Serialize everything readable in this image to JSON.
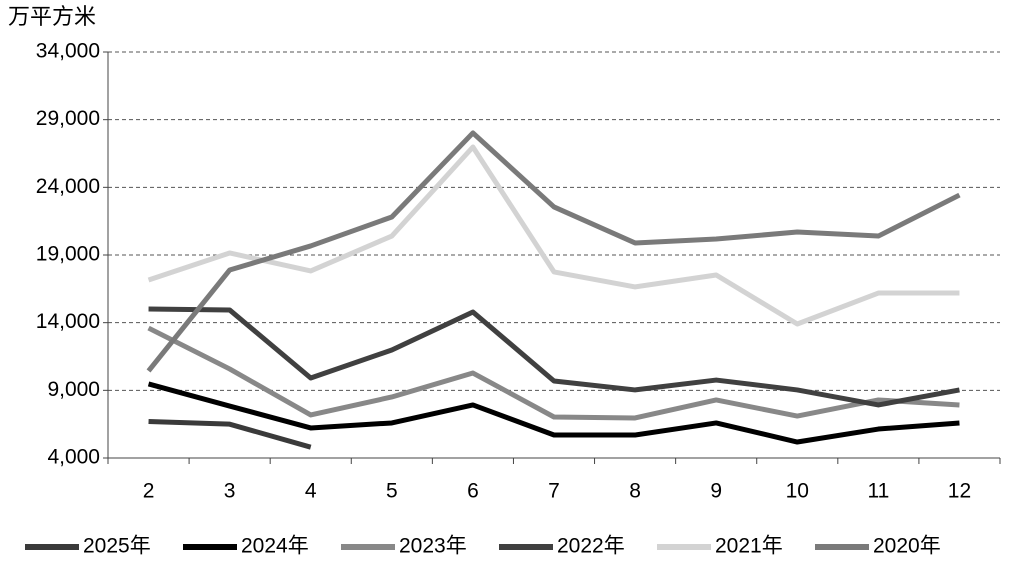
{
  "chart_data": {
    "type": "line",
    "unit_label": "万平方米",
    "categories": [
      "2",
      "3",
      "4",
      "5",
      "6",
      "7",
      "8",
      "9",
      "10",
      "11",
      "12"
    ],
    "series": [
      {
        "name": "2025年",
        "color": "#3a3a3a",
        "values": [
          6700,
          6500,
          4800,
          null,
          null,
          null,
          null,
          null,
          null,
          null,
          null
        ]
      },
      {
        "name": "2024年",
        "color": "#000000",
        "values": [
          9470,
          7840,
          6220,
          6590,
          7920,
          5700,
          5700,
          6590,
          5180,
          6140,
          6590
        ]
      },
      {
        "name": "2023年",
        "color": "#888888",
        "values": [
          13600,
          10580,
          7180,
          8510,
          10280,
          7030,
          6960,
          8290,
          7100,
          8290,
          7920
        ]
      },
      {
        "name": "2022年",
        "color": "#404040",
        "values": [
          15010,
          14940,
          9910,
          11980,
          14790,
          9690,
          9030,
          9760,
          9030,
          7920,
          9030
        ]
      },
      {
        "name": "2021年",
        "color": "#d3d3d3",
        "values": [
          17150,
          19150,
          17820,
          20400,
          26980,
          17750,
          16640,
          17520,
          13900,
          16190,
          16190
        ]
      },
      {
        "name": "2020年",
        "color": "#7a7a7a",
        "values": [
          10430,
          17890,
          19670,
          21810,
          28020,
          22550,
          19890,
          20180,
          20700,
          20400,
          23430
        ]
      }
    ],
    "ylim": [
      4000,
      34000
    ],
    "yticks": [
      {
        "value": 4000,
        "label": "4,000"
      },
      {
        "value": 9000,
        "label": "9,000"
      },
      {
        "value": 14000,
        "label": "14,000"
      },
      {
        "value": 19000,
        "label": "19,000"
      },
      {
        "value": 24000,
        "label": "24,000"
      },
      {
        "value": 29000,
        "label": "29,000"
      },
      {
        "value": 34000,
        "label": "34,000"
      }
    ],
    "grid": true,
    "legend": "bottom"
  }
}
